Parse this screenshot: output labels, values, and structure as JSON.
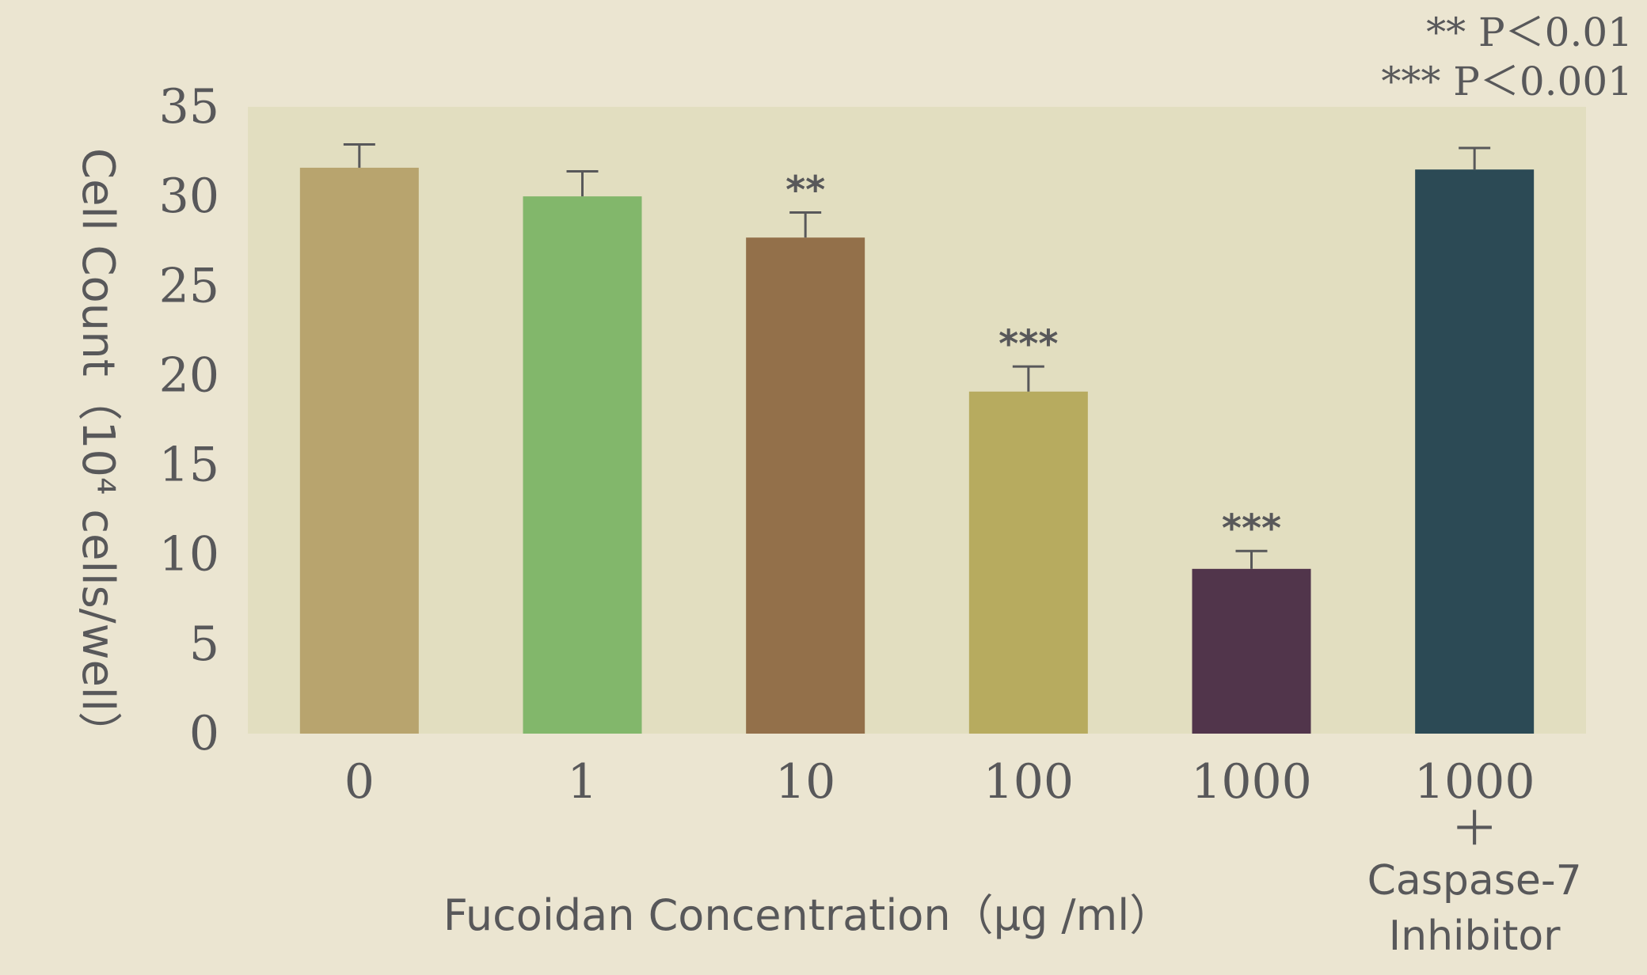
{
  "chart_data": {
    "type": "bar",
    "categories": [
      "0",
      "1",
      "10",
      "100",
      "1000",
      "1000"
    ],
    "category_sublabels": [
      "",
      "",
      "",
      "",
      "",
      "＋ Caspase-7 Inhibitor"
    ],
    "values": [
      31.6,
      30.0,
      27.7,
      19.1,
      9.2,
      31.5
    ],
    "errors": [
      1.3,
      1.4,
      1.4,
      1.4,
      1.0,
      1.2
    ],
    "significance": [
      "",
      "",
      "**",
      "***",
      "***",
      ""
    ],
    "colors": [
      "#b8a46e",
      "#82b76b",
      "#93704a",
      "#b7ab5f",
      "#51354b",
      "#2c4a55"
    ],
    "xlabel": "Fucoidan Concentration（μg /ml）",
    "ylabel": "Cell Count（10⁴ cells/well）",
    "ylim": [
      0,
      35
    ],
    "yticks": [
      0,
      5,
      10,
      15,
      20,
      25,
      30,
      35
    ],
    "legend": [
      "** P＜0.01",
      "*** P＜0.001"
    ],
    "legend_position": "top-right",
    "plot_background": "#e2dec0",
    "page_background": "#ebe5d1",
    "text_color": "#58585a",
    "grid": false
  }
}
